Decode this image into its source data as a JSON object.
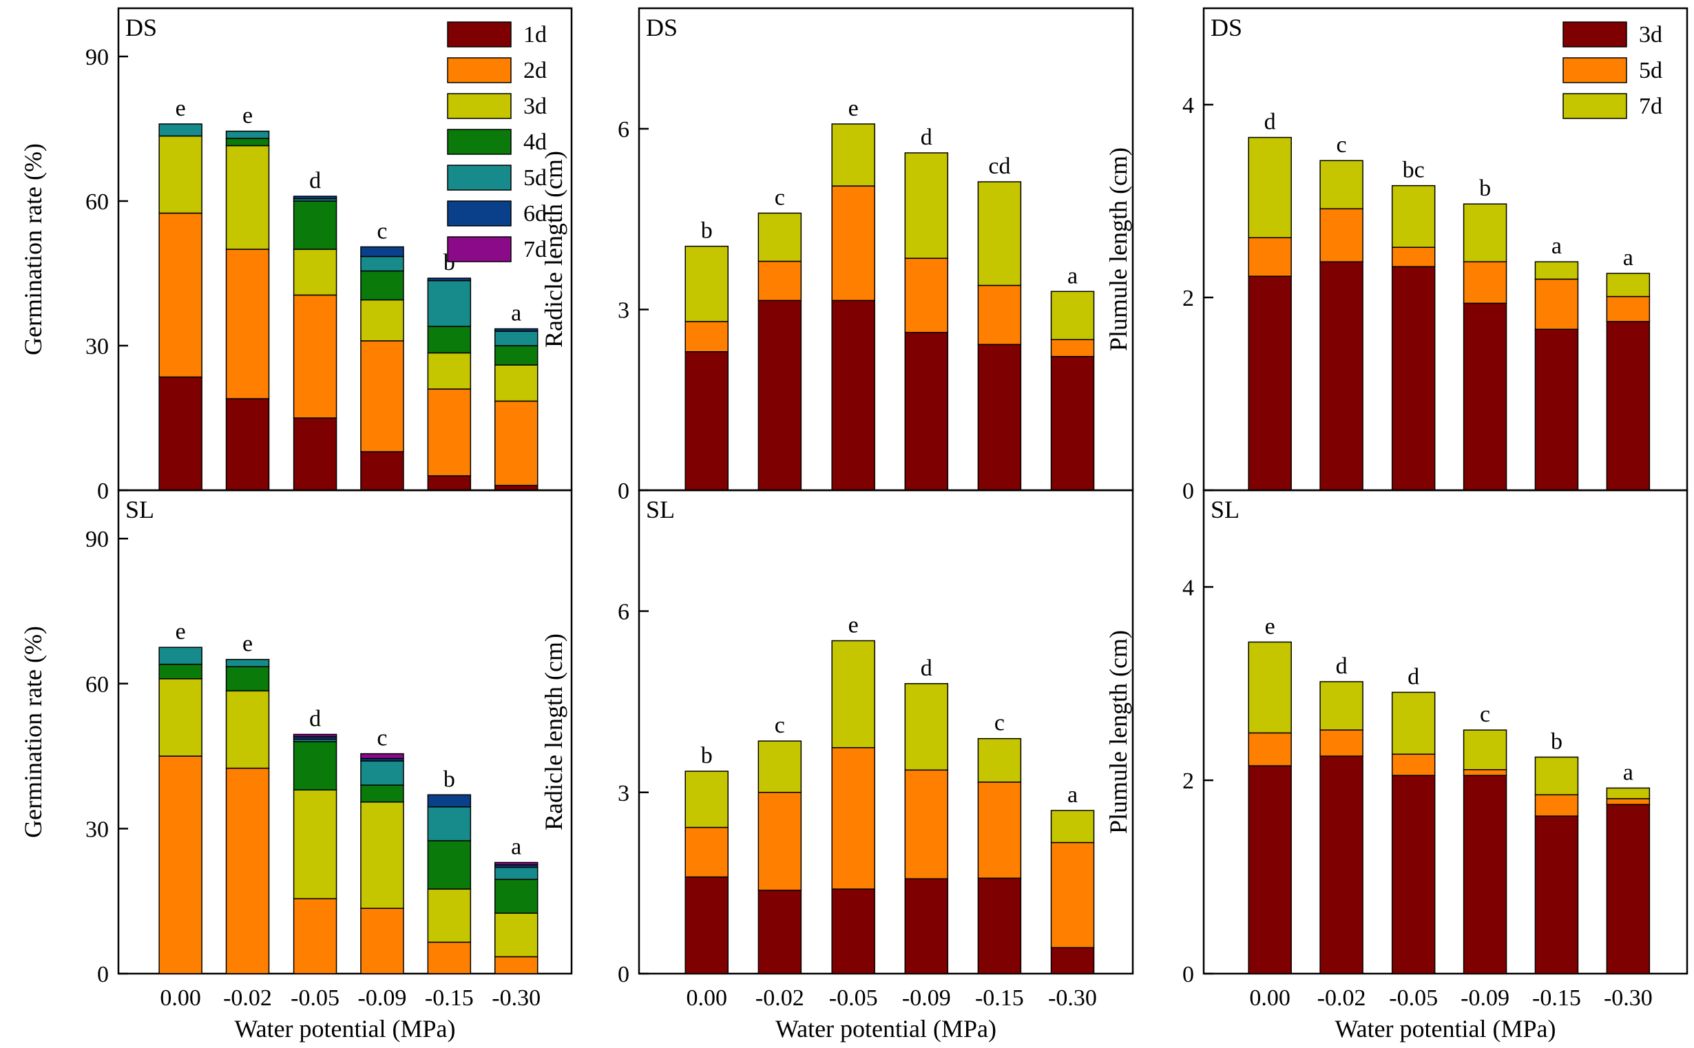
{
  "colors": {
    "1d": "#7f0000",
    "2d": "#ff8000",
    "3d": "#c5c500",
    "4d": "#0a7a0a",
    "5d": "#178b8b",
    "6d": "#0a3f8a",
    "7d": "#8a0a8a"
  },
  "x_axis_title": "Water potential (MPa)",
  "chart_data": [
    {
      "id": "ds-germination",
      "type": "bar",
      "stacked": true,
      "panel_label": "DS",
      "ylabel": "Germination rate (%)",
      "ylim": [
        0,
        100
      ],
      "yticks": [
        0,
        30,
        60,
        90
      ],
      "categories": [
        "0.00",
        "-0.02",
        "-0.05",
        "-0.09",
        "-0.15",
        "-0.30"
      ],
      "series": [
        {
          "name": "1d",
          "color_key": "1d",
          "values": [
            23.5,
            19,
            15,
            8,
            3,
            1
          ]
        },
        {
          "name": "2d",
          "color_key": "2d",
          "values": [
            34,
            31,
            25.5,
            23,
            18,
            17.5
          ]
        },
        {
          "name": "3d",
          "color_key": "3d",
          "values": [
            16,
            21.5,
            9.5,
            8.5,
            7.5,
            7.5
          ]
        },
        {
          "name": "4d",
          "color_key": "4d",
          "values": [
            0,
            1.5,
            10,
            6,
            5.5,
            4
          ]
        },
        {
          "name": "5d",
          "color_key": "5d",
          "values": [
            2.5,
            1.5,
            0.5,
            3,
            9.5,
            3
          ]
        },
        {
          "name": "6d",
          "color_key": "6d",
          "values": [
            0,
            0,
            0.5,
            2,
            0.5,
            0.5
          ]
        },
        {
          "name": "7d",
          "color_key": "7d",
          "values": [
            0,
            0,
            0,
            0,
            0,
            0
          ]
        }
      ],
      "significance_letters": [
        "e",
        "e",
        "d",
        "c",
        "b",
        "a"
      ],
      "legend": {
        "entries": [
          "1d",
          "2d",
          "3d",
          "4d",
          "5d",
          "6d",
          "7d"
        ],
        "position": "top-right"
      },
      "show_xticklabels": false,
      "show_xlabel": false
    },
    {
      "id": "ds-radicle",
      "type": "bar",
      "stacked": true,
      "panel_label": "DS",
      "ylabel": "Radicle length (cm)",
      "ylim": [
        0,
        8
      ],
      "yticks": [
        0,
        3,
        6
      ],
      "categories": [
        "0.00",
        "-0.02",
        "-0.05",
        "-0.09",
        "-0.15",
        "-0.30"
      ],
      "series": [
        {
          "name": "3d",
          "color_key": "1d",
          "values": [
            2.3,
            3.15,
            3.15,
            2.62,
            2.42,
            2.22
          ]
        },
        {
          "name": "5d",
          "color_key": "2d",
          "values": [
            0.5,
            0.65,
            1.9,
            1.23,
            0.98,
            0.28
          ]
        },
        {
          "name": "7d",
          "color_key": "3d",
          "values": [
            1.25,
            0.8,
            1.03,
            1.75,
            1.72,
            0.8
          ]
        }
      ],
      "significance_letters": [
        "b",
        "c",
        "e",
        "d",
        "cd",
        "a"
      ],
      "show_xticklabels": false,
      "show_xlabel": false
    },
    {
      "id": "ds-plumule",
      "type": "bar",
      "stacked": true,
      "panel_label": "DS",
      "ylabel": "Plumule length (cm)",
      "ylim": [
        0,
        5
      ],
      "yticks": [
        0,
        2,
        4
      ],
      "categories": [
        "0.00",
        "-0.02",
        "-0.05",
        "-0.09",
        "-0.15",
        "-0.30"
      ],
      "series": [
        {
          "name": "3d",
          "color_key": "1d",
          "values": [
            2.22,
            2.37,
            2.32,
            1.94,
            1.67,
            1.75
          ]
        },
        {
          "name": "5d",
          "color_key": "2d",
          "values": [
            0.4,
            0.55,
            0.2,
            0.43,
            0.52,
            0.26
          ]
        },
        {
          "name": "7d",
          "color_key": "3d",
          "values": [
            1.04,
            0.5,
            0.64,
            0.6,
            0.18,
            0.24
          ]
        }
      ],
      "significance_letters": [
        "d",
        "c",
        "bc",
        "b",
        "a",
        "a"
      ],
      "legend": {
        "entries": [
          "3d",
          "5d",
          "7d"
        ],
        "position": "top-right"
      },
      "show_xticklabels": false,
      "show_xlabel": false
    },
    {
      "id": "sl-germination",
      "type": "bar",
      "stacked": true,
      "panel_label": "SL",
      "ylabel": "Germination rate (%)",
      "ylim": [
        0,
        100
      ],
      "yticks": [
        0,
        30,
        60,
        90
      ],
      "categories": [
        "0.00",
        "-0.02",
        "-0.05",
        "-0.09",
        "-0.15",
        "-0.30"
      ],
      "series": [
        {
          "name": "1d",
          "color_key": "1d",
          "values": [
            0,
            0,
            0,
            0,
            0,
            0
          ]
        },
        {
          "name": "2d",
          "color_key": "2d",
          "values": [
            45,
            42.5,
            15.5,
            13.5,
            6.5,
            3.5
          ]
        },
        {
          "name": "3d",
          "color_key": "3d",
          "values": [
            16,
            16,
            22.5,
            22,
            11,
            9
          ]
        },
        {
          "name": "4d",
          "color_key": "4d",
          "values": [
            3,
            5,
            10,
            3.5,
            10,
            7
          ]
        },
        {
          "name": "5d",
          "color_key": "5d",
          "values": [
            3.5,
            1.5,
            0.5,
            5,
            7,
            2.5
          ]
        },
        {
          "name": "6d",
          "color_key": "6d",
          "values": [
            0,
            0,
            0.5,
            0.5,
            2.5,
            0.5
          ]
        },
        {
          "name": "7d",
          "color_key": "7d",
          "values": [
            0,
            0,
            0.5,
            1,
            0,
            0.5
          ]
        }
      ],
      "significance_letters": [
        "e",
        "e",
        "d",
        "c",
        "b",
        "a"
      ],
      "show_xticklabels": true,
      "show_xlabel": true
    },
    {
      "id": "sl-radicle",
      "type": "bar",
      "stacked": true,
      "panel_label": "SL",
      "ylabel": "Radicle length (cm)",
      "ylim": [
        0,
        8
      ],
      "yticks": [
        0,
        3,
        6
      ],
      "categories": [
        "0.00",
        "-0.02",
        "-0.05",
        "-0.09",
        "-0.15",
        "-0.30"
      ],
      "series": [
        {
          "name": "3d",
          "color_key": "1d",
          "values": [
            1.6,
            1.38,
            1.4,
            1.57,
            1.58,
            0.43
          ]
        },
        {
          "name": "5d",
          "color_key": "2d",
          "values": [
            0.82,
            1.62,
            2.34,
            1.8,
            1.59,
            1.74
          ]
        },
        {
          "name": "7d",
          "color_key": "3d",
          "values": [
            0.93,
            0.85,
            1.77,
            1.43,
            0.72,
            0.53
          ]
        }
      ],
      "significance_letters": [
        "b",
        "c",
        "e",
        "d",
        "c",
        "a"
      ],
      "show_xticklabels": true,
      "show_xlabel": true
    },
    {
      "id": "sl-plumule",
      "type": "bar",
      "stacked": true,
      "panel_label": "SL",
      "ylabel": "Plumule length (cm)",
      "ylim": [
        0,
        5
      ],
      "yticks": [
        0,
        2,
        4
      ],
      "categories": [
        "0.00",
        "-0.02",
        "-0.05",
        "-0.09",
        "-0.15",
        "-0.30"
      ],
      "series": [
        {
          "name": "3d",
          "color_key": "1d",
          "values": [
            2.15,
            2.25,
            2.05,
            2.05,
            1.63,
            1.75
          ]
        },
        {
          "name": "5d",
          "color_key": "2d",
          "values": [
            0.34,
            0.27,
            0.22,
            0.06,
            0.22,
            0.06
          ]
        },
        {
          "name": "7d",
          "color_key": "3d",
          "values": [
            0.94,
            0.5,
            0.64,
            0.41,
            0.39,
            0.11
          ]
        }
      ],
      "significance_letters": [
        "e",
        "d",
        "d",
        "c",
        "b",
        "a"
      ],
      "show_xticklabels": true,
      "show_xlabel": true
    }
  ]
}
